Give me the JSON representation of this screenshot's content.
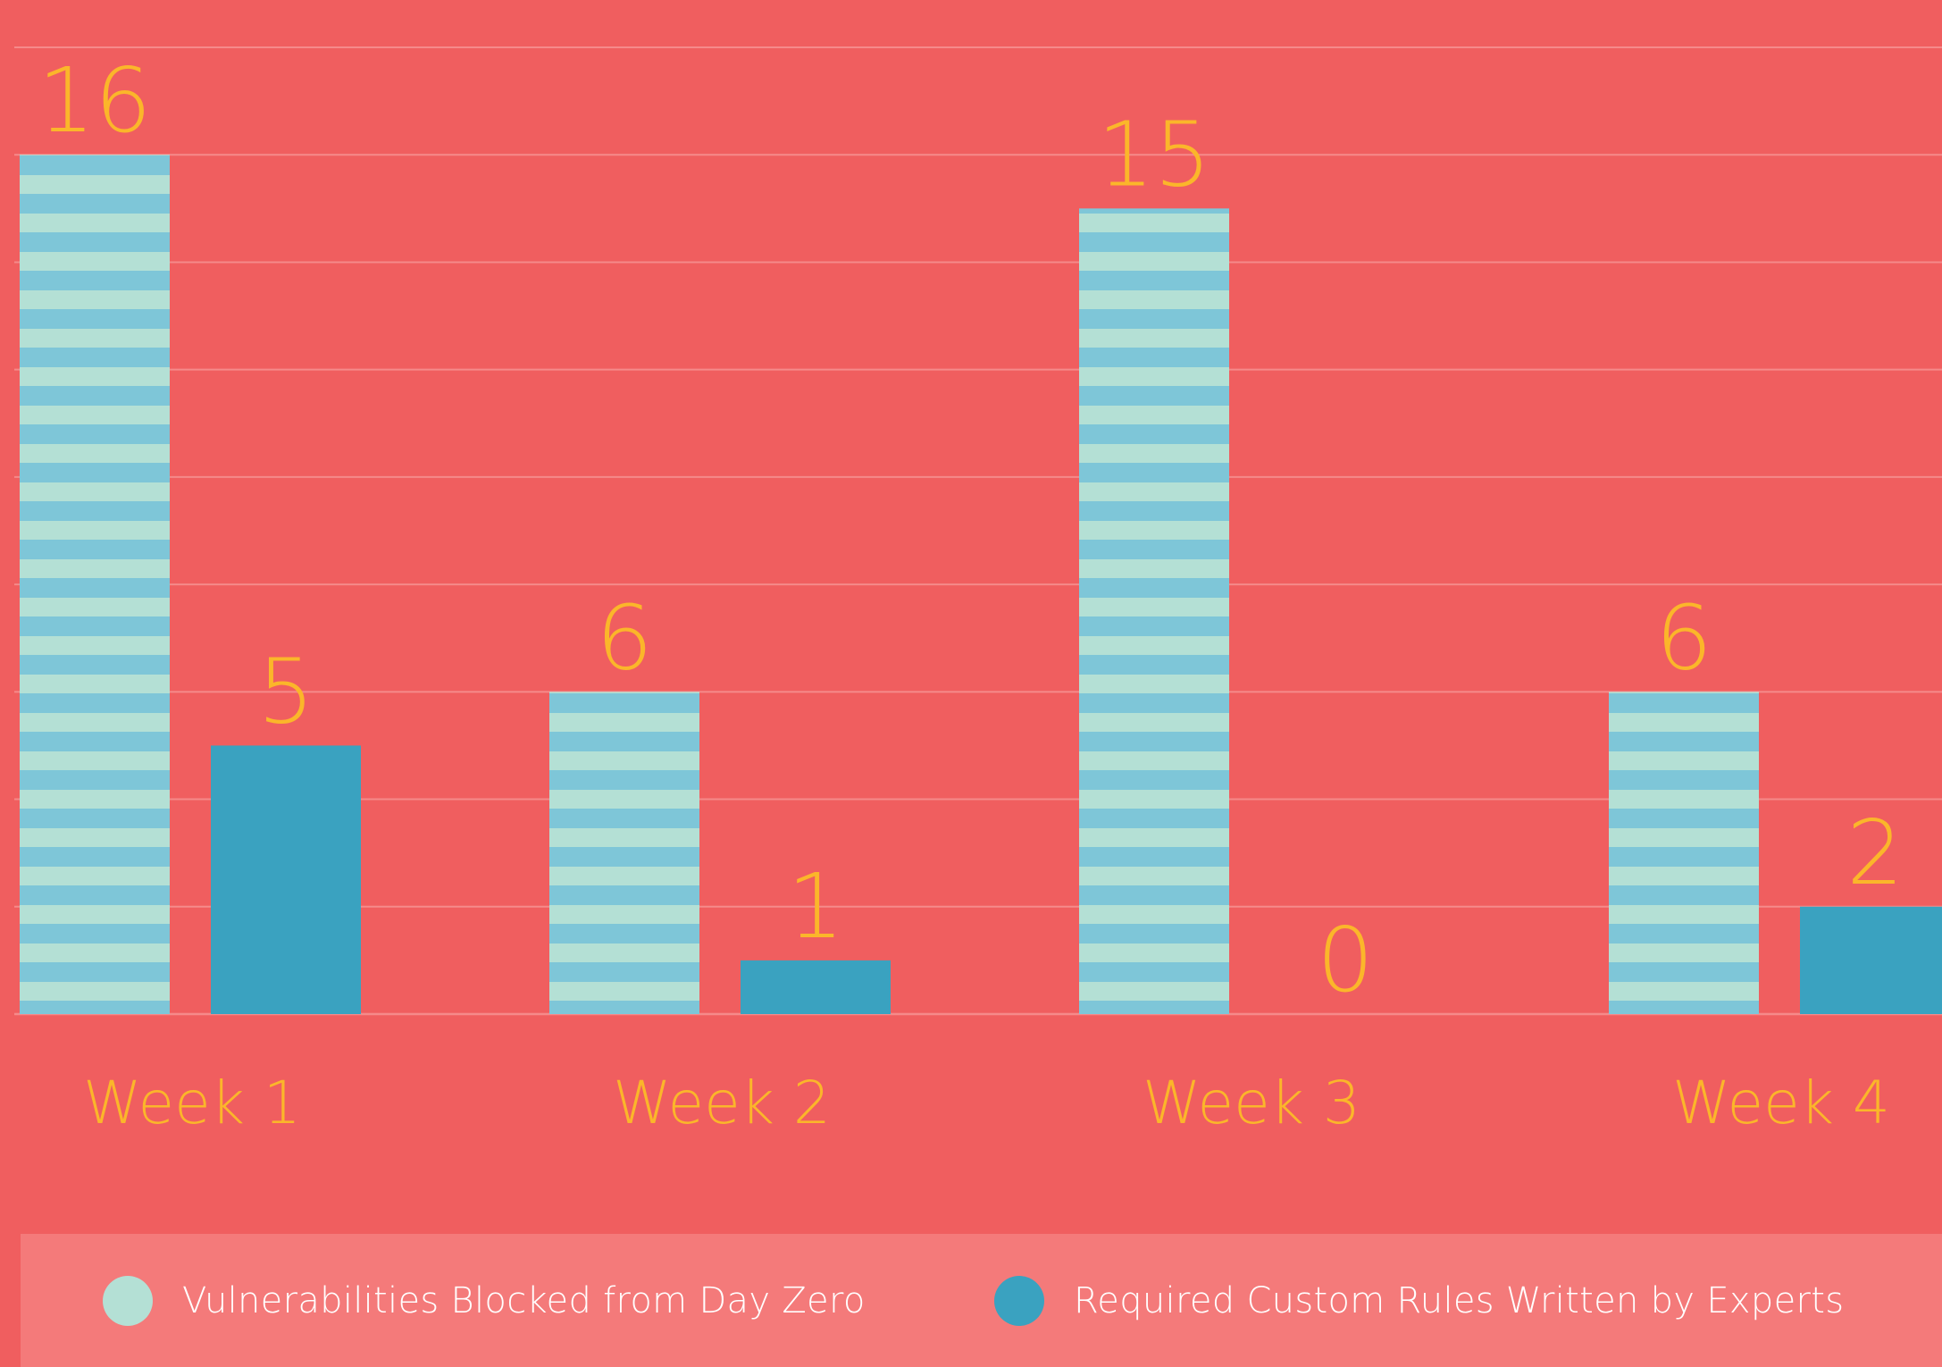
{
  "colors": {
    "background": "#f05e5f",
    "legend_background": "#f47a7a",
    "gridline": "#f58a8a",
    "label_text": "#fbb62a",
    "series1_stripe_a": "#7ec6d8",
    "series1_stripe_b": "#b4e0d5",
    "series2": "#3aa2c0",
    "legend_text": "#ffffff"
  },
  "chart_data": {
    "type": "bar",
    "categories": [
      "Week 1",
      "Week 2",
      "Week 3",
      "Week 4"
    ],
    "series": [
      {
        "name": "Vulnerabilities Blocked from Day Zero",
        "values": [
          16,
          6,
          15,
          6
        ],
        "labels": [
          "16",
          "6",
          "15",
          "6"
        ],
        "fill": "striped",
        "icon": "light-teal-circle"
      },
      {
        "name": "Required Custom Rules Written by Experts",
        "values": [
          5,
          1,
          0,
          2
        ],
        "labels": [
          "5",
          "1",
          "0",
          "2"
        ],
        "fill": "solid",
        "icon": "teal-circle"
      }
    ],
    "ylim": [
      0,
      18
    ],
    "grid": true,
    "legend_position": "bottom",
    "data_labels": true
  }
}
